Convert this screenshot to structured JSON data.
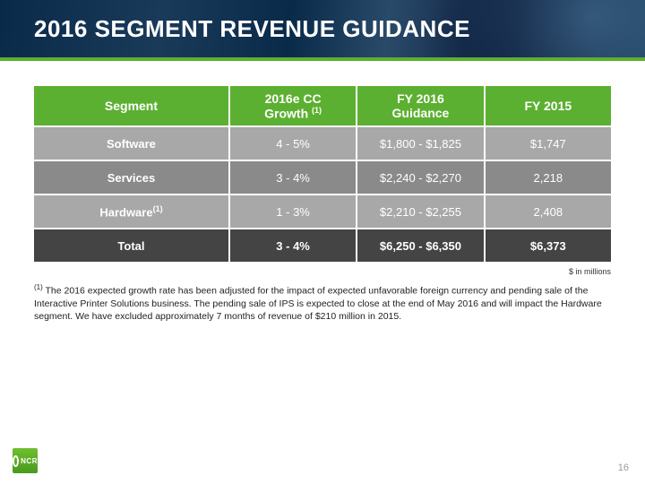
{
  "banner": {
    "title": "2016 SEGMENT REVENUE GUIDANCE"
  },
  "colors": {
    "header_bg": "#5cb031",
    "row_light": "#a8a8a8",
    "row_mid": "#8a8a8a",
    "row_total": "#444444",
    "banner_border": "#5cb031",
    "text": "#ffffff"
  },
  "table": {
    "columns": [
      {
        "label": "Segment",
        "width": "34%"
      },
      {
        "label_line1": "2016e CC",
        "label_line2": "Growth ",
        "sup": "(1)",
        "width": "22%"
      },
      {
        "label_line1": "FY 2016",
        "label_line2": "Guidance",
        "width": "22%"
      },
      {
        "label": "FY 2015",
        "width": "22%"
      }
    ],
    "rows": [
      {
        "style": "row-light",
        "segment": "Software",
        "growth": "4 - 5%",
        "guidance": "$1,800 - $1,825",
        "fy2015": "$1,747"
      },
      {
        "style": "row-mid",
        "segment": "Services",
        "growth": "3 - 4%",
        "guidance": "$2,240 - $2,270",
        "fy2015": "2,218"
      },
      {
        "style": "row-light",
        "segment": "Hardware",
        "segment_sup": "(1)",
        "growth": "1 - 3%",
        "guidance": "$2,210 - $2,255",
        "fy2015": "2,408"
      },
      {
        "style": "row-total",
        "segment": "Total",
        "growth": "3 - 4%",
        "guidance": "$6,250 - $6,350",
        "fy2015": "$6,373"
      }
    ],
    "units": "$ in millions"
  },
  "footnote": {
    "sup": "(1)",
    "text": " The 2016 expected growth rate has been adjusted for the impact of expected unfavorable foreign currency and pending sale of the Interactive Printer Solutions business.  The pending sale of IPS is expected to close at the end of May 2016 and will impact the Hardware segment.  We have excluded approximately 7 months of revenue of $210 million in 2015."
  },
  "page_number": "16",
  "logo_text": "NCR"
}
